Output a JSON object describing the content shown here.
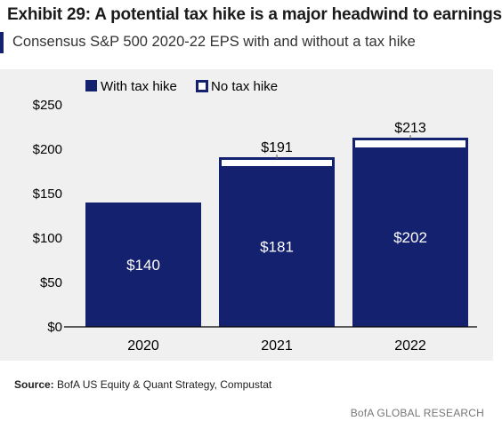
{
  "header": {
    "title": "Exhibit 29: A potential tax hike is a major headwind to earnings",
    "subtitle": "Consensus S&P 500 2020-22 EPS with and without a tax hike"
  },
  "footer": {
    "source_label": "Source:",
    "source_text": "BofA US Equity & Quant Strategy, Compustat",
    "brand": "BofA GLOBAL RESEARCH"
  },
  "colors": {
    "navy": "#14216e",
    "accent": "#14216e",
    "white": "#ffffff",
    "panel": "#f0f0f0"
  },
  "chart_data": {
    "type": "bar",
    "stacked": true,
    "categories": [
      "2020",
      "2021",
      "2022"
    ],
    "series": [
      {
        "name": "With  tax hike",
        "values": [
          140,
          181,
          202
        ],
        "labels": [
          "$140",
          "$181",
          "$202"
        ]
      },
      {
        "name": "No tax hike",
        "values": [
          0,
          10,
          11
        ]
      }
    ],
    "total_labels": [
      "",
      "$191",
      "$213"
    ],
    "yticks": [
      0,
      50,
      100,
      150,
      200,
      250
    ],
    "ytick_labels": [
      "$0",
      "$50",
      "$100",
      "$150",
      "$200",
      "$250"
    ],
    "ylim": [
      0,
      250
    ],
    "grid": false,
    "legend": "top-left"
  }
}
